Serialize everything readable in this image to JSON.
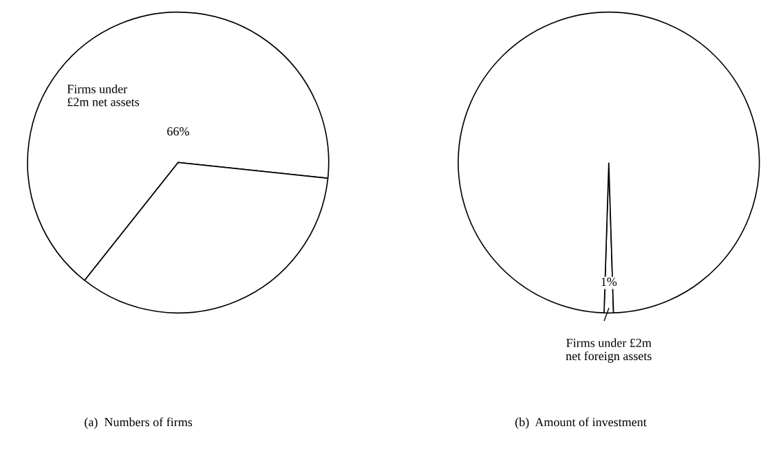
{
  "chart_data": [
    {
      "type": "pie",
      "title": "(a)  Numbers of firms",
      "categories": [
        "Firms under\n£2m net assets",
        null
      ],
      "values": [
        66,
        34
      ],
      "colors": [
        "#ffffff",
        "#ffffff"
      ],
      "value_labels": [
        "66%",
        null
      ]
    },
    {
      "type": "pie",
      "title": "(b)  Amount of investment",
      "categories": [
        "Firms under £2m\nnet foreign assets",
        null
      ],
      "values": [
        1,
        99
      ],
      "colors": [
        "#ffffff",
        "#ffffff"
      ],
      "value_labels": [
        "1%",
        null
      ]
    }
  ]
}
